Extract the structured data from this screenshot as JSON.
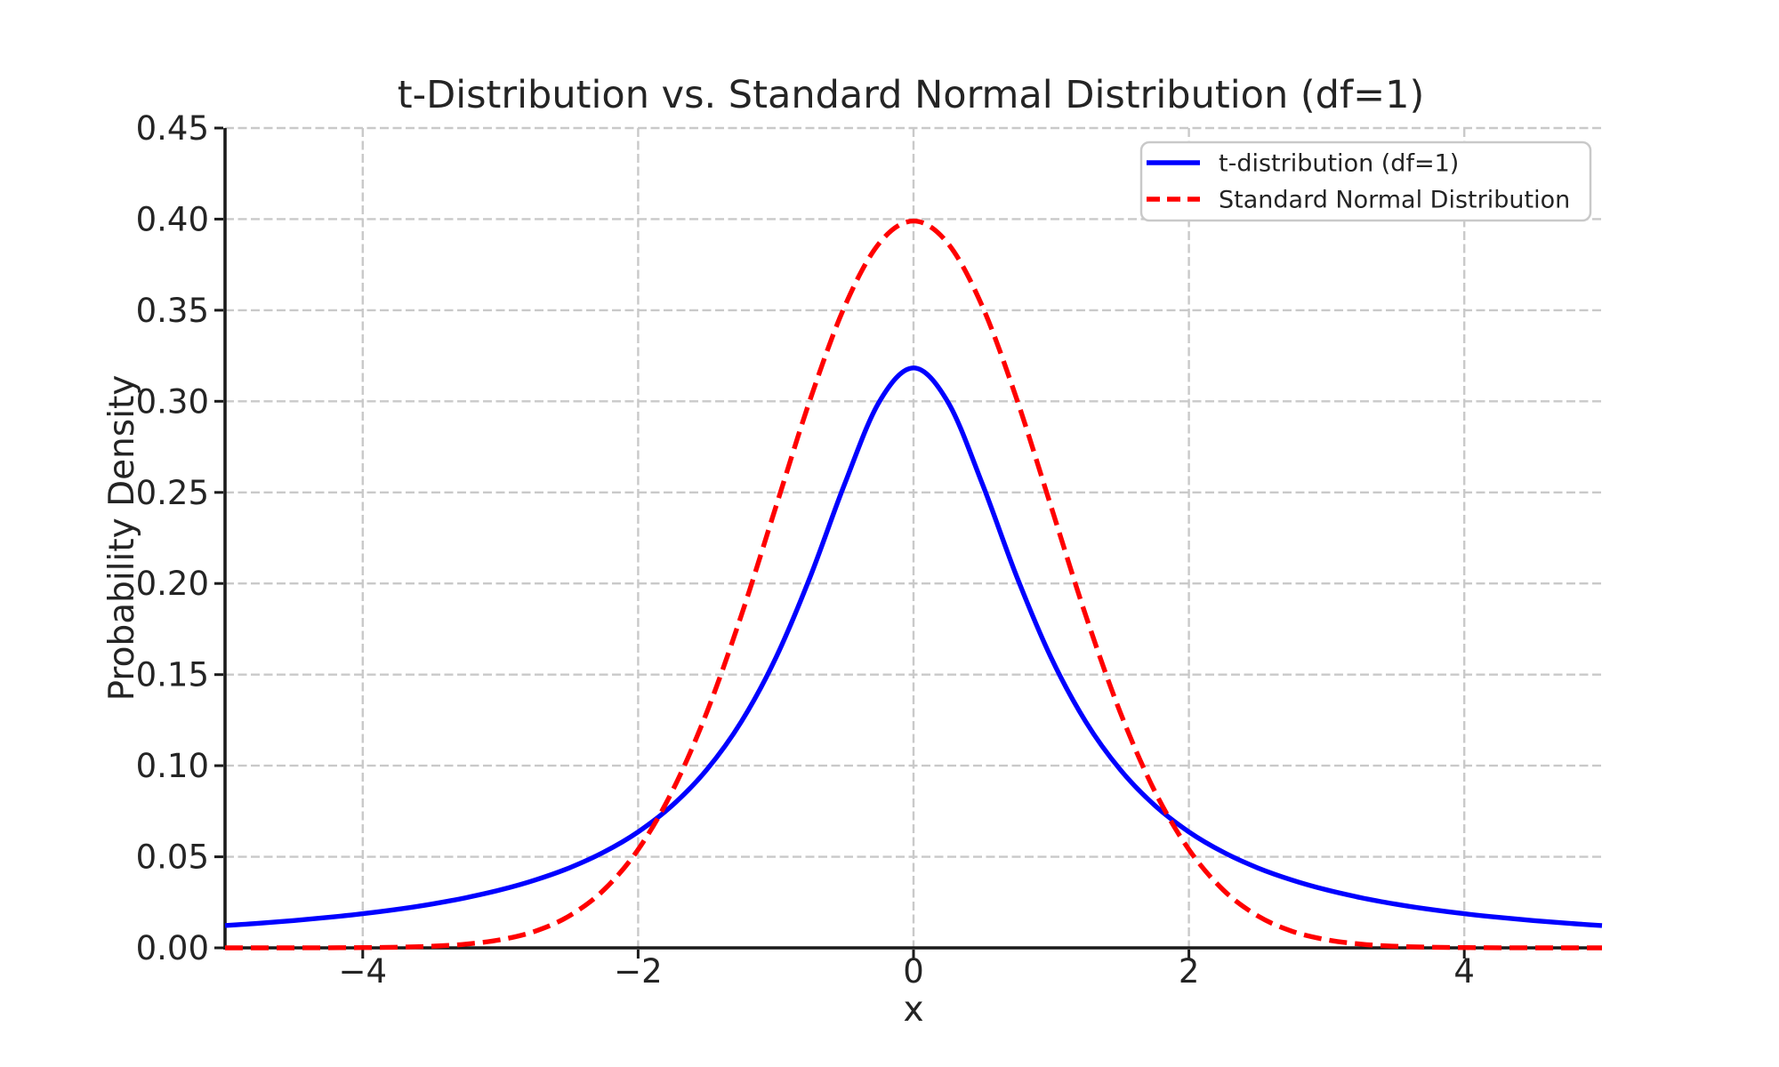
{
  "figure": {
    "title": "t-Distribution vs. Standard Normal Distribution (df=1)",
    "xlabel": "x",
    "ylabel": "Probability Density",
    "background_color": "#ffffff",
    "text_color": "#242424",
    "spine_color": "#1a1a1a",
    "grid_color": "#c9c9c9",
    "legend": {
      "border_color": "#c9c9c9",
      "background_color": "#ffffff",
      "items": [
        {
          "label": "t-distribution (df=1)",
          "color": "#0000ff",
          "linestyle": "solid"
        },
        {
          "label": "Standard Normal Distribution",
          "color": "#ff0000",
          "linestyle": "dashed"
        }
      ]
    }
  },
  "chart_data": {
    "type": "line",
    "title": "t-Distribution vs. Standard Normal Distribution (df=1)",
    "xlabel": "x",
    "ylabel": "Probability Density",
    "xlim": [
      -5,
      5
    ],
    "ylim": [
      0,
      0.45
    ],
    "xticks": [
      -4,
      -2,
      0,
      2,
      4
    ],
    "xtick_labels": [
      "−4",
      "−2",
      "0",
      "2",
      "4"
    ],
    "yticks": [
      0,
      0.05,
      0.1,
      0.15,
      0.2,
      0.25,
      0.3,
      0.35,
      0.4,
      0.45
    ],
    "ytick_labels": [
      "0.00",
      "0.05",
      "0.10",
      "0.15",
      "0.20",
      "0.25",
      "0.30",
      "0.35",
      "0.40",
      "0.45"
    ],
    "grid": true,
    "grid_style": "dashed",
    "legend_position": "upper right",
    "x": [
      -5,
      -4.75,
      -4.5,
      -4.25,
      -4,
      -3.75,
      -3.5,
      -3.25,
      -3,
      -2.75,
      -2.5,
      -2.25,
      -2,
      -1.75,
      -1.5,
      -1.25,
      -1,
      -0.75,
      -0.5,
      -0.25,
      0,
      0.25,
      0.5,
      0.75,
      1,
      1.25,
      1.5,
      1.75,
      2,
      2.25,
      2.5,
      2.75,
      3,
      3.25,
      3.5,
      3.75,
      4,
      4.25,
      4.5,
      4.75,
      5
    ],
    "series": [
      {
        "name": "t-distribution (df=1)",
        "color": "#0000ff",
        "linestyle": "solid",
        "values": [
          0.01224,
          0.01351,
          0.01498,
          0.01672,
          0.01872,
          0.02113,
          0.02402,
          0.02753,
          0.03183,
          0.03717,
          0.0439,
          0.0525,
          0.06366,
          0.07835,
          0.09794,
          0.12422,
          0.15915,
          0.20372,
          0.25465,
          0.29959,
          0.31831,
          0.29959,
          0.25465,
          0.20372,
          0.15915,
          0.12422,
          0.09794,
          0.07835,
          0.06366,
          0.0525,
          0.0439,
          0.03717,
          0.03183,
          0.02753,
          0.02402,
          0.02113,
          0.01872,
          0.01672,
          0.01498,
          0.01351,
          0.01224
        ]
      },
      {
        "name": "Standard Normal Distribution",
        "color": "#ff0000",
        "linestyle": "dashed",
        "values": [
          0.0,
          1e-05,
          2e-05,
          5e-05,
          0.00013,
          0.00035,
          0.00087,
          0.00203,
          0.00443,
          0.00909,
          0.01753,
          0.03174,
          0.05399,
          0.08628,
          0.12952,
          0.18265,
          0.24197,
          0.30114,
          0.35207,
          0.38667,
          0.39894,
          0.38667,
          0.35207,
          0.30114,
          0.24197,
          0.18265,
          0.12952,
          0.08628,
          0.05399,
          0.03174,
          0.01753,
          0.00909,
          0.00443,
          0.00203,
          0.00087,
          0.00035,
          0.00013,
          5e-05,
          2e-05,
          1e-05,
          0.0
        ]
      }
    ]
  }
}
